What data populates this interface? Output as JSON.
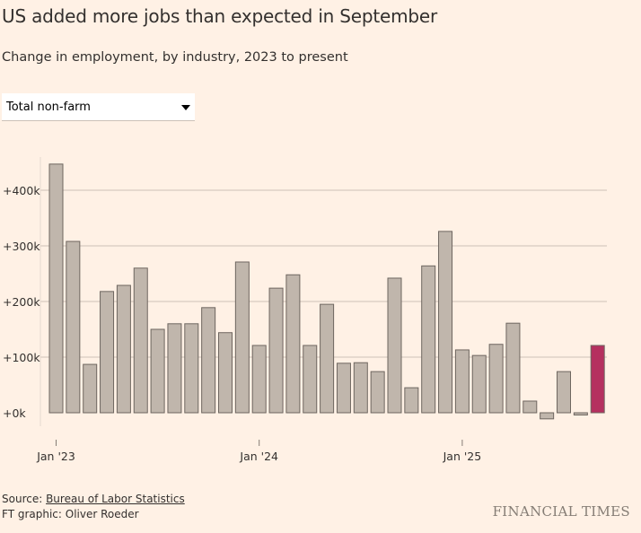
{
  "title": "US added more jobs than expected in September",
  "subtitle": "Change in employment, by industry, 2023 to present",
  "dropdown": {
    "selected": "Total non-farm"
  },
  "footer": {
    "source_label": "Source: ",
    "source_link": "Bureau of Labor Statistics",
    "credit": "FT graphic: Oliver Roeder",
    "brand": "FINANCIAL TIMES"
  },
  "colors": {
    "background": "#fff1e5",
    "bar": "#c0b6ac",
    "bar_stroke": "#6e6660",
    "highlight": "#b5305f",
    "grid": "#ccc1b7"
  },
  "chart_data": {
    "type": "bar",
    "title": "US added more jobs than expected in September",
    "xlabel": "",
    "ylabel": "",
    "ylim": [
      -20,
      450
    ],
    "grid": true,
    "yticks": [
      0,
      100,
      200,
      300,
      400
    ],
    "ytick_labels": [
      "+0k",
      "+100k",
      "+200k",
      "+300k",
      "+400k"
    ],
    "xtick_labels": [
      {
        "index": 0,
        "label": "Jan '23"
      },
      {
        "index": 12,
        "label": "Jan '24"
      },
      {
        "index": 24,
        "label": "Jan '25"
      }
    ],
    "categories": [
      "2023-01",
      "2023-02",
      "2023-03",
      "2023-04",
      "2023-05",
      "2023-06",
      "2023-07",
      "2023-08",
      "2023-09",
      "2023-10",
      "2023-11",
      "2023-12",
      "2024-01",
      "2024-02",
      "2024-03",
      "2024-04",
      "2024-05",
      "2024-06",
      "2024-07",
      "2024-08",
      "2024-09",
      "2024-10",
      "2024-11",
      "2024-12",
      "2025-01",
      "2025-02",
      "2025-03",
      "2025-04",
      "2025-05",
      "2025-06",
      "2025-07",
      "2025-08",
      "2025-09"
    ],
    "values": [
      447,
      308,
      87,
      218,
      229,
      260,
      150,
      160,
      160,
      189,
      144,
      271,
      121,
      224,
      248,
      121,
      195,
      89,
      90,
      74,
      242,
      45,
      264,
      326,
      113,
      103,
      123,
      161,
      21,
      -11,
      74,
      -4,
      121
    ],
    "highlight_index": 32,
    "units": "thousands of jobs"
  }
}
